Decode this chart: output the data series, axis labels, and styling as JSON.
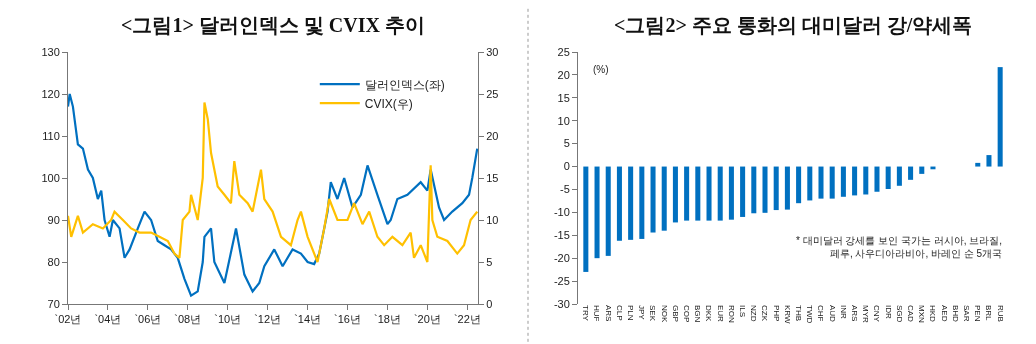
{
  "chart_data": [
    {
      "type": "line",
      "title": "<그림1> 달러인덱스 및 CVIX 추이",
      "legend": "top right",
      "grid": false,
      "xlim": [
        "2002-01-01",
        "2022-07-15"
      ],
      "xticks": [
        {
          "value": "2002-01-01",
          "label": "`02년"
        },
        {
          "value": "2004-01-01",
          "label": "`04년"
        },
        {
          "value": "2006-01-01",
          "label": "`06년"
        },
        {
          "value": "2008-01-01",
          "label": "`08년"
        },
        {
          "value": "2010-01-01",
          "label": "`10년"
        },
        {
          "value": "2012-01-01",
          "label": "`12년"
        },
        {
          "value": "2014-01-01",
          "label": "`14년"
        },
        {
          "value": "2016-01-01",
          "label": "`16년"
        },
        {
          "value": "2018-01-01",
          "label": "`18년"
        },
        {
          "value": "2020-01-01",
          "label": "`20년"
        },
        {
          "value": "2022-01-01",
          "label": "`22년"
        }
      ],
      "ylim": [
        70,
        130
      ],
      "yticks": [
        70,
        80,
        90,
        100,
        110,
        120,
        130
      ],
      "y2lim": [
        0,
        30
      ],
      "y2ticks": [
        0,
        5,
        10,
        15,
        20,
        25,
        30
      ],
      "series": [
        {
          "name": "달러인덱스(좌)",
          "color": "#0070c0",
          "x": [
            "2002-01",
            "2002-02",
            "2002-04",
            "2002-07",
            "2002-10",
            "2003-01",
            "2003-04",
            "2003-07",
            "2003-09",
            "2003-11",
            "2004-02",
            "2004-04",
            "2004-08",
            "2004-11",
            "2005-02",
            "2005-07",
            "2005-11",
            "2006-03",
            "2006-07",
            "2006-11",
            "2007-03",
            "2007-07",
            "2007-11",
            "2008-03",
            "2008-07",
            "2008-10",
            "2008-11",
            "2009-03",
            "2009-05",
            "2009-11",
            "2010-05",
            "2010-06",
            "2010-11",
            "2011-04",
            "2011-08",
            "2011-11",
            "2012-05",
            "2012-10",
            "2013-04",
            "2013-09",
            "2014-01",
            "2014-05",
            "2014-08",
            "2015-01",
            "2015-03",
            "2015-07",
            "2015-11",
            "2016-04",
            "2016-09",
            "2017-01",
            "2017-07",
            "2018-01",
            "2018-03",
            "2018-07",
            "2019-01",
            "2019-09",
            "2020-01",
            "2020-03",
            "2020-08",
            "2020-11",
            "2021-04",
            "2021-10",
            "2022-02",
            "2022-04",
            "2022-07"
          ],
          "values": [
            117,
            120,
            117,
            108,
            107,
            102,
            100,
            95,
            97,
            90,
            86,
            90,
            88,
            81,
            83,
            88,
            92,
            90,
            85,
            84,
            83,
            81,
            76,
            72,
            73,
            80,
            86,
            88,
            80,
            75,
            86,
            88,
            77,
            73,
            75,
            79,
            83,
            79,
            83,
            82,
            80,
            79.5,
            82,
            92,
            99,
            95,
            100,
            93,
            96,
            103,
            96,
            89,
            90,
            95,
            96,
            99,
            97,
            102,
            93,
            90,
            92,
            94,
            96,
            100,
            107
          ]
        },
        {
          "name": "CVIX(우)",
          "color": "#ffc000",
          "axis": "y2",
          "x": [
            "2002-01",
            "2002-03",
            "2002-07",
            "2002-10",
            "2003-04",
            "2003-10",
            "2004-03",
            "2004-05",
            "2004-10",
            "2005-03",
            "2005-08",
            "2006-03",
            "2006-08",
            "2007-01",
            "2007-05",
            "2007-08",
            "2007-10",
            "2008-02",
            "2008-03",
            "2008-07",
            "2008-10",
            "2008-11",
            "2009-01",
            "2009-03",
            "2009-07",
            "2009-11",
            "2010-03",
            "2010-05",
            "2010-08",
            "2011-01",
            "2011-04",
            "2011-09",
            "2011-11",
            "2012-04",
            "2012-09",
            "2013-03",
            "2013-07",
            "2013-09",
            "2014-01",
            "2014-07",
            "2014-11",
            "2015-02",
            "2015-07",
            "2016-01",
            "2016-05",
            "2016-10",
            "2017-02",
            "2017-07",
            "2017-11",
            "2018-04",
            "2018-10",
            "2019-03",
            "2019-05",
            "2019-09",
            "2020-01",
            "2020-03",
            "2020-04",
            "2020-07",
            "2021-01",
            "2021-07",
            "2021-11",
            "2022-03",
            "2022-07"
          ],
          "values": [
            10.5,
            8,
            10.5,
            8.5,
            9.5,
            9,
            10,
            11,
            10,
            9,
            8.5,
            8.5,
            8,
            7.5,
            6,
            5.5,
            10,
            11,
            13,
            10,
            15,
            24,
            22,
            18,
            14,
            13,
            12,
            17,
            13,
            12,
            11,
            16,
            12.5,
            11,
            8,
            7,
            10,
            11,
            8,
            5,
            9,
            12.5,
            10,
            10,
            12,
            9.5,
            11,
            8,
            7,
            8,
            7,
            8.5,
            5.5,
            7,
            5,
            16.5,
            10,
            8,
            7.5,
            6,
            7,
            10,
            11
          ]
        }
      ]
    },
    {
      "type": "bar",
      "title": "<그림2> 주요 통화의 대미달러 강/약세폭",
      "ylabel": "(%)",
      "grid": false,
      "color": "#0070c0",
      "categories": [
        "TRY",
        "HUF",
        "ARS",
        "CLP",
        "PLN",
        "JPY",
        "SEK",
        "NOK",
        "GBP",
        "COP",
        "BGN",
        "DKK",
        "EUR",
        "RON",
        "ILS",
        "NZD",
        "CZK",
        "PHP",
        "KRW",
        "THB",
        "TWD",
        "CHF",
        "AUD",
        "INR",
        "ARS",
        "MYR",
        "CNY",
        "IDR",
        "SGD",
        "CAD",
        "MXN",
        "HKD",
        "AED",
        "BHD",
        "SAR",
        "PEN",
        "BRL",
        "RUB"
      ],
      "values": [
        -23,
        -20,
        -19.5,
        -16.2,
        -16,
        -15.8,
        -14.4,
        -14,
        -12.2,
        -11.8,
        -11.8,
        -11.8,
        -11.8,
        -11.6,
        -11,
        -10.2,
        -10.1,
        -9.5,
        -9.4,
        -8,
        -7.4,
        -7,
        -7,
        -6.6,
        -6.3,
        -6.1,
        -5.5,
        -4.9,
        -4.2,
        -2.9,
        -1.6,
        -0.6,
        0,
        0,
        0,
        0.8,
        2.5,
        21.7
      ],
      "ylim": [
        -30,
        25
      ],
      "yticks": [
        -30,
        -25,
        -20,
        -15,
        -10,
        -5,
        0,
        5,
        10,
        15,
        20,
        25
      ],
      "annotations": [
        "* 대미달러 강세를 보인 국가는 러시아, 브라질,\n페루, 사우디아라비아, 바레인 순 5개국"
      ]
    }
  ]
}
